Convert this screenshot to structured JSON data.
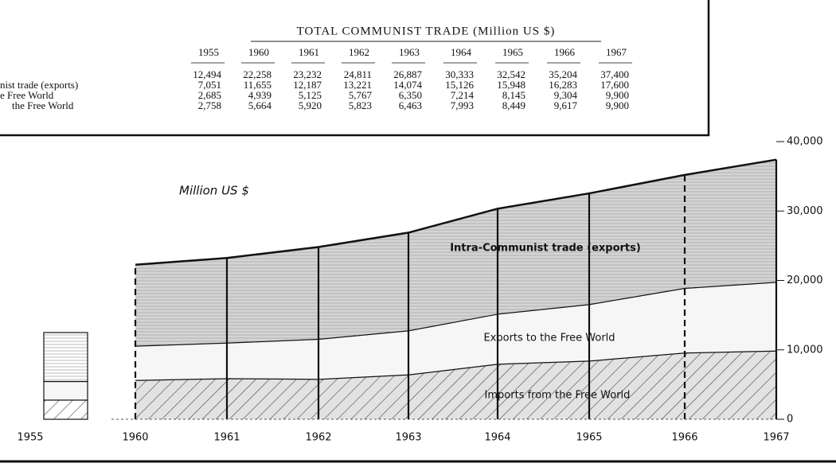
{
  "table": {
    "title": "TOTAL COMMUNIST TRADE (Million US $)",
    "row_labels": [
      "nist trade (exports)",
      "e Free World",
      "the Free World"
    ],
    "totals": [
      "12,494",
      "22,258",
      "23,232",
      "24,811",
      "26,887",
      "30,333",
      "32,542",
      "35,204",
      "37,400"
    ]
  },
  "chart_data": {
    "type": "area",
    "y_label": "Million US $",
    "categories": [
      "1955",
      "1960",
      "1961",
      "1962",
      "1963",
      "1964",
      "1965",
      "1966",
      "1967"
    ],
    "series": [
      {
        "name": "Intra-Communist trade (exports)",
        "color": "#d4d4d4",
        "values": [
          7051,
          11655,
          12187,
          13221,
          14074,
          15126,
          15948,
          16283,
          17600
        ],
        "value_labels": [
          "7,051",
          "11,655",
          "12,187",
          "13,221",
          "14,074",
          "15,126",
          "15,948",
          "16,283",
          "17,600"
        ]
      },
      {
        "name": "Exports to the Free World",
        "color": "#f6f6f6",
        "values": [
          2685,
          4939,
          5125,
          5767,
          6350,
          7214,
          8145,
          9304,
          9900
        ],
        "value_labels": [
          "2,685",
          "4,939",
          "5,125",
          "5,767",
          "6,350",
          "7,214",
          "8,145",
          "9,304",
          "9,900"
        ]
      },
      {
        "name": "Imports from the Free World",
        "color": "#e2e2e2",
        "values": [
          2758,
          5664,
          5920,
          5823,
          6463,
          7993,
          8449,
          9617,
          9900
        ],
        "value_labels": [
          "2,758",
          "5,664",
          "5,920",
          "5,823",
          "6,463",
          "7,993",
          "8,449",
          "9,617",
          "9,900"
        ]
      }
    ],
    "ylim": [
      0,
      40000
    ],
    "yticks": [
      {
        "value": 0,
        "label": "0"
      },
      {
        "value": 10000,
        "label": "10,000"
      },
      {
        "value": 20000,
        "label": "20,000"
      },
      {
        "value": 30000,
        "label": "30,000"
      },
      {
        "value": 40000,
        "label": "40,000"
      }
    ]
  }
}
